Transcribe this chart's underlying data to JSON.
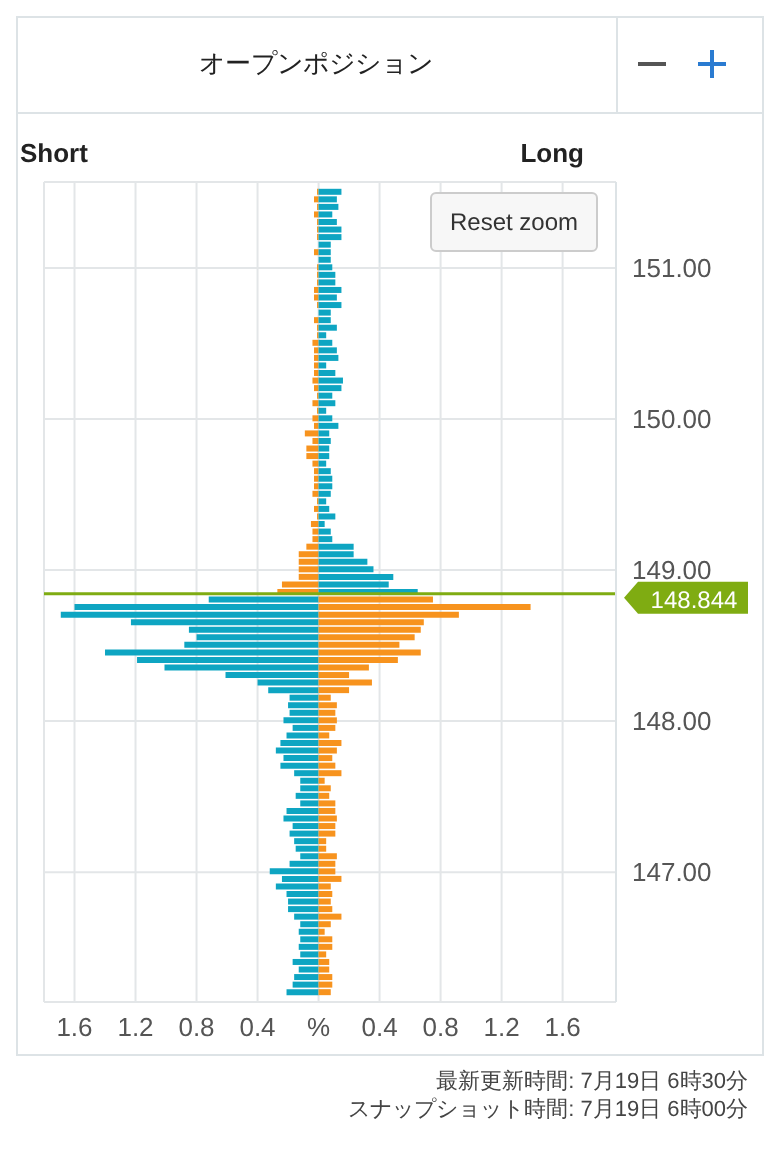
{
  "chart_data": {
    "type": "bar",
    "title": "オープンポジション",
    "orientation": "horizontal",
    "x": [
      151.5,
      151.45,
      151.4,
      151.35,
      151.3,
      151.25,
      151.2,
      151.15,
      151.1,
      151.05,
      151,
      150.95,
      150.9,
      150.85,
      150.8,
      150.75,
      150.7,
      150.65,
      150.6,
      150.55,
      150.5,
      150.45,
      150.4,
      150.35,
      150.3,
      150.25,
      150.2,
      150.15,
      150.1,
      150.05,
      150,
      149.95,
      149.9,
      149.85,
      149.8,
      149.75,
      149.7,
      149.65,
      149.6,
      149.55,
      149.5,
      149.45,
      149.4,
      149.35,
      149.3,
      149.25,
      149.2,
      149.15,
      149.1,
      149.05,
      149,
      148.95,
      148.9,
      148.85,
      148.8,
      148.75,
      148.7,
      148.65,
      148.6,
      148.55,
      148.5,
      148.45,
      148.4,
      148.35,
      148.3,
      148.25,
      148.2,
      148.15,
      148.1,
      148.05,
      148,
      147.95,
      147.9,
      147.85,
      147.8,
      147.75,
      147.7,
      147.65,
      147.6,
      147.55,
      147.5,
      147.45,
      147.4,
      147.35,
      147.3,
      147.25,
      147.2,
      147.15,
      147.1,
      147.05,
      147,
      146.95,
      146.9,
      146.85,
      146.8,
      146.75,
      146.7,
      146.65,
      146.6,
      146.55,
      146.5,
      146.45,
      146.4,
      146.35,
      146.3,
      146.25,
      146.2
    ],
    "series": [
      {
        "values": [
          -0.01,
          -0.03,
          -0.01,
          -0.03,
          -0.01,
          -0.01,
          -0.01,
          0,
          -0.03,
          0,
          -0.01,
          -0.01,
          -0.01,
          -0.03,
          -0.03,
          -0.01,
          0,
          -0.03,
          -0.01,
          -0.01,
          -0.04,
          -0.03,
          -0.03,
          -0.03,
          -0.03,
          -0.04,
          -0.03,
          -0.01,
          -0.04,
          -0.01,
          -0.04,
          -0.03,
          -0.09,
          -0.04,
          -0.08,
          -0.08,
          -0.04,
          -0.03,
          -0.03,
          -0.03,
          -0.04,
          -0.01,
          -0.03,
          -0.01,
          -0.05,
          -0.04,
          -0.04,
          -0.08,
          -0.13,
          -0.13,
          -0.13,
          -0.13,
          -0.24,
          -0.27,
          -0.72,
          -1.6,
          -1.69,
          -1.23,
          -0.85,
          -0.8,
          -0.88,
          -1.4,
          -1.19,
          -1.01,
          -0.61,
          -0.4,
          -0.33,
          -0.19,
          -0.2,
          -0.19,
          -0.23,
          -0.17,
          -0.21,
          -0.25,
          -0.28,
          -0.23,
          -0.25,
          -0.16,
          -0.12,
          -0.12,
          -0.15,
          -0.12,
          -0.21,
          -0.23,
          -0.17,
          -0.19,
          -0.16,
          -0.15,
          -0.12,
          -0.19,
          -0.32,
          -0.24,
          -0.28,
          -0.21,
          -0.2,
          -0.2,
          -0.16,
          -0.12,
          -0.13,
          -0.12,
          -0.13,
          -0.12,
          -0.17,
          -0.13,
          -0.16,
          -0.17,
          -0.21
        ],
        "colors": [
          "#f7931e",
          "#f7931e",
          "#f7931e",
          "#f7931e",
          "#f7931e",
          "#f7931e",
          "#f7931e",
          "#f7931e",
          "#f7931e",
          "#f7931e",
          "#f7931e",
          "#f7931e",
          "#f7931e",
          "#f7931e",
          "#f7931e",
          "#f7931e",
          "#f7931e",
          "#f7931e",
          "#f7931e",
          "#f7931e",
          "#f7931e",
          "#f7931e",
          "#f7931e",
          "#f7931e",
          "#f7931e",
          "#f7931e",
          "#f7931e",
          "#f7931e",
          "#f7931e",
          "#f7931e",
          "#f7931e",
          "#f7931e",
          "#f7931e",
          "#f7931e",
          "#f7931e",
          "#f7931e",
          "#f7931e",
          "#f7931e",
          "#f7931e",
          "#f7931e",
          "#f7931e",
          "#f7931e",
          "#f7931e",
          "#f7931e",
          "#f7931e",
          "#f7931e",
          "#f7931e",
          "#f7931e",
          "#f7931e",
          "#f7931e",
          "#f7931e",
          "#f7931e",
          "#f7931e",
          "#f7931e",
          "#0ea5c2",
          "#0ea5c2",
          "#0ea5c2",
          "#0ea5c2",
          "#0ea5c2",
          "#0ea5c2",
          "#0ea5c2",
          "#0ea5c2",
          "#0ea5c2",
          "#0ea5c2",
          "#0ea5c2",
          "#0ea5c2",
          "#0ea5c2",
          "#0ea5c2",
          "#0ea5c2",
          "#0ea5c2",
          "#0ea5c2",
          "#0ea5c2",
          "#0ea5c2",
          "#0ea5c2",
          "#0ea5c2",
          "#0ea5c2",
          "#0ea5c2",
          "#0ea5c2",
          "#0ea5c2",
          "#0ea5c2",
          "#0ea5c2",
          "#0ea5c2",
          "#0ea5c2",
          "#0ea5c2",
          "#0ea5c2",
          "#0ea5c2",
          "#0ea5c2",
          "#0ea5c2",
          "#0ea5c2",
          "#0ea5c2",
          "#0ea5c2",
          "#0ea5c2",
          "#0ea5c2",
          "#0ea5c2",
          "#0ea5c2",
          "#0ea5c2",
          "#0ea5c2",
          "#0ea5c2",
          "#0ea5c2",
          "#0ea5c2",
          "#0ea5c2",
          "#0ea5c2",
          "#0ea5c2",
          "#0ea5c2",
          "#0ea5c2",
          "#0ea5c2",
          "#0ea5c2"
        ]
      },
      {
        "values": [
          0.15,
          0.12,
          0.13,
          0.09,
          0.12,
          0.15,
          0.15,
          0.08,
          0.08,
          0.08,
          0.09,
          0.11,
          0.11,
          0.15,
          0.12,
          0.15,
          0.08,
          0.08,
          0.12,
          0.05,
          0.09,
          0.12,
          0.13,
          0.05,
          0.11,
          0.16,
          0.15,
          0.09,
          0.11,
          0.05,
          0.09,
          0.13,
          0.07,
          0.08,
          0.07,
          0.07,
          0.05,
          0.08,
          0.09,
          0.09,
          0.08,
          0.05,
          0.07,
          0.11,
          0.04,
          0.08,
          0.09,
          0.23,
          0.23,
          0.32,
          0.36,
          0.49,
          0.46,
          0.65,
          0.75,
          1.39,
          0.92,
          0.69,
          0.67,
          0.63,
          0.53,
          0.67,
          0.52,
          0.33,
          0.2,
          0.35,
          0.2,
          0.08,
          0.12,
          0.11,
          0.12,
          0.11,
          0.07,
          0.15,
          0.12,
          0.09,
          0.11,
          0.15,
          0.04,
          0.08,
          0.07,
          0.11,
          0.11,
          0.12,
          0.11,
          0.11,
          0.05,
          0.05,
          0.12,
          0.11,
          0.11,
          0.15,
          0.08,
          0.09,
          0.08,
          0.09,
          0.15,
          0.08,
          0.04,
          0.09,
          0.09,
          0.05,
          0.07,
          0.07,
          0.09,
          0.09,
          0.08
        ],
        "colors": [
          "#0ea5c2",
          "#0ea5c2",
          "#0ea5c2",
          "#0ea5c2",
          "#0ea5c2",
          "#0ea5c2",
          "#0ea5c2",
          "#0ea5c2",
          "#0ea5c2",
          "#0ea5c2",
          "#0ea5c2",
          "#0ea5c2",
          "#0ea5c2",
          "#0ea5c2",
          "#0ea5c2",
          "#0ea5c2",
          "#0ea5c2",
          "#0ea5c2",
          "#0ea5c2",
          "#0ea5c2",
          "#0ea5c2",
          "#0ea5c2",
          "#0ea5c2",
          "#0ea5c2",
          "#0ea5c2",
          "#0ea5c2",
          "#0ea5c2",
          "#0ea5c2",
          "#0ea5c2",
          "#0ea5c2",
          "#0ea5c2",
          "#0ea5c2",
          "#0ea5c2",
          "#0ea5c2",
          "#0ea5c2",
          "#0ea5c2",
          "#0ea5c2",
          "#0ea5c2",
          "#0ea5c2",
          "#0ea5c2",
          "#0ea5c2",
          "#0ea5c2",
          "#0ea5c2",
          "#0ea5c2",
          "#0ea5c2",
          "#0ea5c2",
          "#0ea5c2",
          "#0ea5c2",
          "#0ea5c2",
          "#0ea5c2",
          "#0ea5c2",
          "#0ea5c2",
          "#0ea5c2",
          "#0ea5c2",
          "#f7931e",
          "#f7931e",
          "#f7931e",
          "#f7931e",
          "#f7931e",
          "#f7931e",
          "#f7931e",
          "#f7931e",
          "#f7931e",
          "#f7931e",
          "#f7931e",
          "#f7931e",
          "#f7931e",
          "#f7931e",
          "#f7931e",
          "#f7931e",
          "#f7931e",
          "#f7931e",
          "#f7931e",
          "#f7931e",
          "#f7931e",
          "#f7931e",
          "#f7931e",
          "#f7931e",
          "#f7931e",
          "#f7931e",
          "#f7931e",
          "#f7931e",
          "#f7931e",
          "#f7931e",
          "#f7931e",
          "#f7931e",
          "#f7931e",
          "#f7931e",
          "#f7931e",
          "#f7931e",
          "#f7931e",
          "#f7931e",
          "#f7931e",
          "#f7931e",
          "#f7931e",
          "#f7931e",
          "#f7931e",
          "#f7931e",
          "#f7931e",
          "#f7931e",
          "#f7931e",
          "#f7931e",
          "#f7931e",
          "#f7931e",
          "#f7931e",
          "#f7931e",
          "#f7931e"
        ]
      }
    ],
    "xlim": [
      -1.8,
      1.95
    ],
    "xticks": [
      {
        "value": -1.6,
        "label": "1.6"
      },
      {
        "value": -1.2,
        "label": "1.2"
      },
      {
        "value": -0.8,
        "label": "0.8"
      },
      {
        "value": -0.4,
        "label": "0.4"
      },
      {
        "value": 0,
        "label": "%"
      },
      0.4,
      0.8,
      1.2,
      1.6
    ],
    "ylim": [
      146.14,
      151.57
    ],
    "yticks": [
      {
        "value": 147,
        "label": "147.00"
      },
      {
        "value": 148,
        "label": "148.00"
      },
      {
        "value": 149,
        "label": "149.00"
      },
      {
        "value": 150,
        "label": "150.00"
      },
      {
        "value": 151,
        "label": "151.00"
      }
    ],
    "ref_lines": [
      {
        "axis": "y",
        "value": 148.844,
        "label": "148.844",
        "color": "#7fac12"
      }
    ],
    "grid": true,
    "stacked": true,
    "annotations": [
      "Short",
      "Long",
      "Reset zoom",
      "最新更新時間: 7月19日 6時30分",
      "スナップショット時間: 7月19日 6時00分"
    ]
  }
}
